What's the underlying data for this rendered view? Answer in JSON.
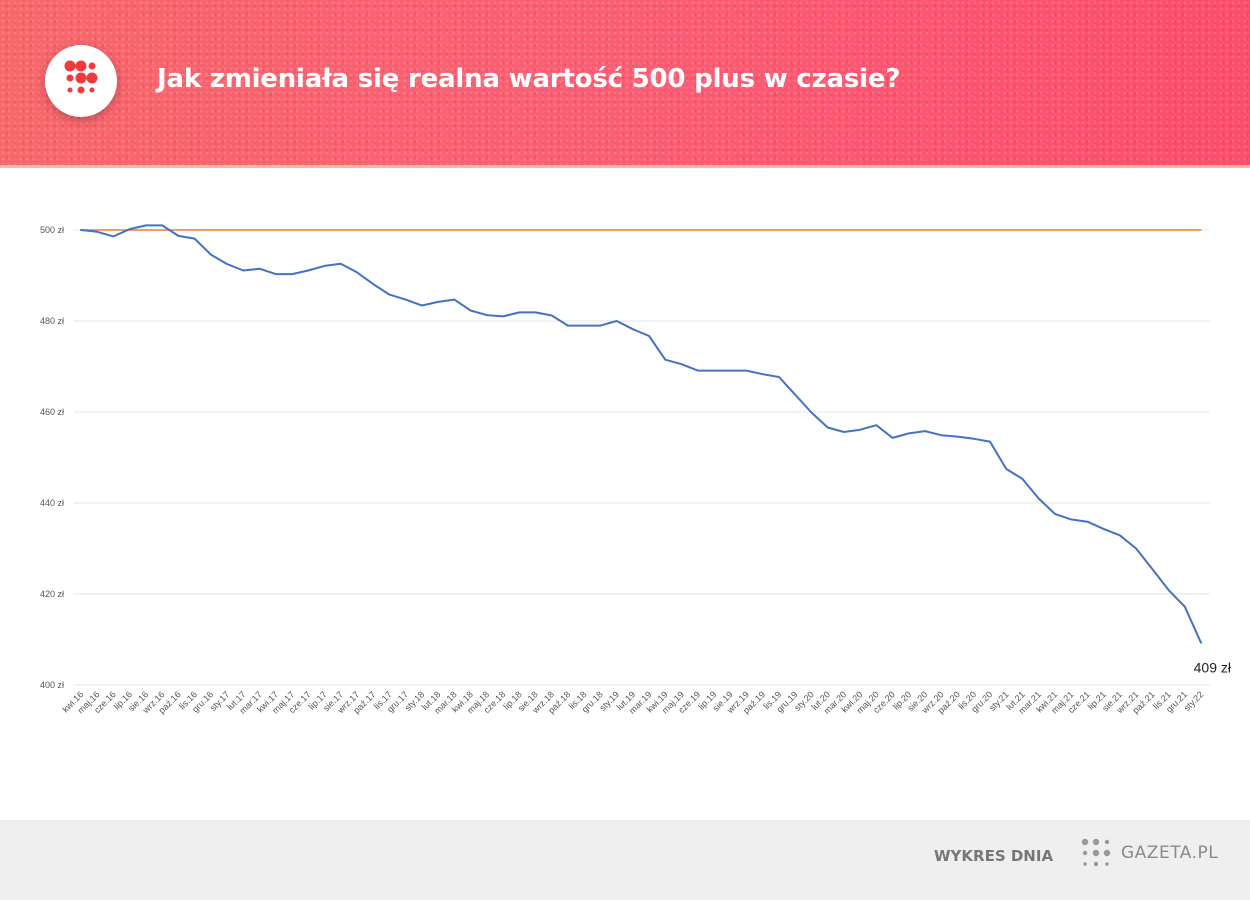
{
  "header": {
    "title": "Jak zmieniała się realna wartość 500 plus w czasie?",
    "logo_icon": "dot-grid-logo-icon",
    "accent_color": "#fd4d6c"
  },
  "footer": {
    "label": "WYKRES DNIA",
    "brand": "GAZETA.PL",
    "brand_icon": "gazeta-dots-icon"
  },
  "chart_data": {
    "type": "line",
    "title": "",
    "xlabel": "",
    "ylabel": "",
    "ylim": [
      400,
      500
    ],
    "yticks": [
      400,
      420,
      440,
      460,
      480,
      500
    ],
    "ytick_labels": [
      "400 zł",
      "420 zł",
      "440 zł",
      "460 zł",
      "480 zł",
      "500 zł"
    ],
    "grid": true,
    "legend": "none",
    "categories": [
      "kwi.16",
      "maj.16",
      "cze.16",
      "lip.16",
      "sie.16",
      "wrz.16",
      "paź.16",
      "lis.16",
      "gru.16",
      "sty.17",
      "lut.17",
      "mar.17",
      "kwi.17",
      "maj.17",
      "cze.17",
      "lip.17",
      "sie.17",
      "wrz.17",
      "paź.17",
      "lis.17",
      "gru.17",
      "sty.18",
      "lut.18",
      "mar.18",
      "kwi.18",
      "maj.18",
      "cze.18",
      "lip.18",
      "sie.18",
      "wrz.18",
      "paź.18",
      "lis.18",
      "gru.18",
      "sty.19",
      "lut.19",
      "mar.19",
      "kwi.19",
      "maj.19",
      "cze.19",
      "lip.19",
      "sie.19",
      "wrz.19",
      "paź.19",
      "lis.19",
      "gru.19",
      "sty.20",
      "lut.20",
      "mar.20",
      "kwi.20",
      "maj.20",
      "cze.20",
      "lip.20",
      "sie.20",
      "wrz.20",
      "paź.20",
      "lis.20",
      "gru.20",
      "sty.21",
      "lut.21",
      "mar.21",
      "kwi.21",
      "maj.21",
      "cze.21",
      "lip.21",
      "sie.21",
      "wrz.21",
      "paź.21",
      "lis.21",
      "gru.21",
      "sty.22"
    ],
    "series": [
      {
        "color": "#4472c4",
        "values": [
          500.0,
          499.6,
          498.6,
          500.2,
          501.0,
          501.0,
          498.7,
          498.1,
          494.6,
          492.5,
          491.1,
          491.5,
          490.3,
          490.3,
          491.1,
          492.1,
          492.6,
          490.7,
          488.1,
          485.8,
          484.7,
          483.4,
          484.2,
          484.7,
          482.3,
          481.3,
          481.0,
          481.9,
          481.9,
          481.2,
          479.0,
          479.0,
          479.0,
          480.0,
          478.2,
          476.7,
          471.5,
          470.5,
          469.1,
          469.1,
          469.1,
          469.1,
          468.3,
          467.7,
          463.8,
          459.9,
          456.6,
          455.6,
          456.1,
          457.1,
          454.3,
          455.3,
          455.8,
          454.9,
          454.6,
          454.1,
          453.5,
          447.5,
          445.3,
          441.0,
          437.6,
          436.4,
          435.9,
          434.3,
          432.9,
          430.0,
          425.5,
          420.9,
          417.2,
          409.3
        ]
      },
      {
        "color": "#ed7d31",
        "values": [
          500,
          500,
          500,
          500,
          500,
          500,
          500,
          500,
          500,
          500,
          500,
          500,
          500,
          500,
          500,
          500,
          500,
          500,
          500,
          500,
          500,
          500,
          500,
          500,
          500,
          500,
          500,
          500,
          500,
          500,
          500,
          500,
          500,
          500,
          500,
          500,
          500,
          500,
          500,
          500,
          500,
          500,
          500,
          500,
          500,
          500,
          500,
          500,
          500,
          500,
          500,
          500,
          500,
          500,
          500,
          500,
          500,
          500,
          500,
          500,
          500,
          500,
          500,
          500,
          500,
          500,
          500,
          500,
          500,
          500
        ]
      }
    ],
    "end_label": "409 zł"
  }
}
